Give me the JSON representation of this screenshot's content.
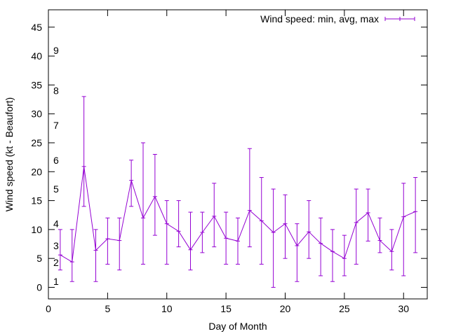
{
  "chart_data": {
    "type": "line",
    "title": "",
    "xlabel": "Day of Month",
    "ylabel": "Wind speed (kt - Beaufort)",
    "xlim": [
      0,
      32
    ],
    "ylim": [
      -2,
      48
    ],
    "x_ticks": [
      0,
      5,
      10,
      15,
      20,
      25,
      30
    ],
    "y_ticks": [
      0,
      5,
      10,
      15,
      20,
      25,
      30,
      35,
      40,
      45
    ],
    "legend": {
      "position": "top-right",
      "label": "Wind speed: min, avg, max"
    },
    "series_color": "#9400d3",
    "beaufort_labels": [
      {
        "label": "1",
        "value": 1.0
      },
      {
        "label": "2",
        "value": 4.3
      },
      {
        "label": "3",
        "value": 7.2
      },
      {
        "label": "4",
        "value": 11.0
      },
      {
        "label": "5",
        "value": 17.0
      },
      {
        "label": "6",
        "value": 22.0
      },
      {
        "label": "7",
        "value": 28.0
      },
      {
        "label": "8",
        "value": 34.0
      },
      {
        "label": "9",
        "value": 41.0
      }
    ],
    "series": [
      {
        "name": "Wind speed: min, avg, max",
        "x": [
          1,
          2,
          3,
          4,
          5,
          6,
          7,
          8,
          9,
          10,
          11,
          12,
          13,
          14,
          15,
          16,
          17,
          18,
          19,
          20,
          21,
          22,
          23,
          24,
          25,
          26,
          27,
          28,
          29,
          30,
          31
        ],
        "avg": [
          5.6,
          4.4,
          20.9,
          6.4,
          8.4,
          8.1,
          18.5,
          12.0,
          15.7,
          11.0,
          9.7,
          6.5,
          9.5,
          12.3,
          8.5,
          8.0,
          13.3,
          11.5,
          9.5,
          11.0,
          7.2,
          9.6,
          7.6,
          6.2,
          5.0,
          11.2,
          12.9,
          8.1,
          6.2,
          12.2,
          13.1
        ],
        "min": [
          3,
          1,
          14,
          1,
          4,
          3,
          14,
          4,
          9,
          4,
          7,
          3,
          6,
          7,
          4,
          4,
          7,
          4,
          0,
          5,
          1,
          5,
          2,
          1,
          2,
          4,
          8,
          6,
          3,
          2,
          6
        ],
        "max": [
          10,
          10,
          33,
          10,
          12,
          12,
          22,
          25,
          23,
          15,
          15,
          13,
          13,
          18,
          13,
          12,
          24,
          19,
          17,
          16,
          11,
          15,
          12,
          10,
          9,
          17,
          17,
          12,
          10,
          18,
          19
        ]
      }
    ]
  }
}
